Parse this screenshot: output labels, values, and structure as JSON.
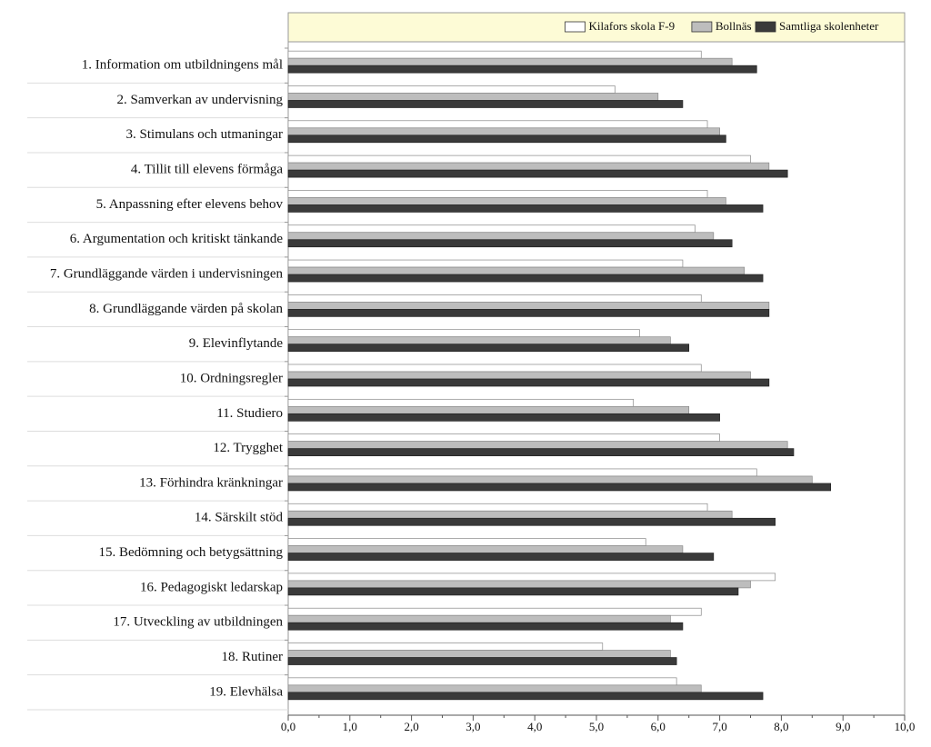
{
  "chart_data": {
    "type": "bar",
    "orientation": "horizontal",
    "categories": [
      "1. Information om utbildningens mål",
      "2. Samverkan av undervisning",
      "3. Stimulans och utmaningar",
      "4. Tillit till elevens förmåga",
      "5. Anpassning efter elevens behov",
      "6. Argumentation och kritiskt tänkande",
      "7. Grundläggande värden i undervisningen",
      "8. Grundläggande värden på skolan",
      "9. Elevinflytande",
      "10. Ordningsregler",
      "11. Studiero",
      "12. Trygghet",
      "13. Förhindra kränkningar",
      "14. Särskilt stöd",
      "15. Bedömning och betygsättning",
      "16. Pedagogiskt ledarskap",
      "17. Utveckling av utbildningen",
      "18. Rutiner",
      "19. Elevhälsa"
    ],
    "series": [
      {
        "name": "Kilafors skola F-9",
        "color": "#ffffff",
        "values": [
          6.7,
          5.3,
          6.8,
          7.5,
          6.8,
          6.6,
          6.4,
          6.7,
          5.7,
          6.7,
          5.6,
          7.0,
          7.6,
          6.8,
          5.8,
          7.9,
          6.7,
          5.1,
          6.3
        ]
      },
      {
        "name": "Bollnäs",
        "color": "#bdbdbd",
        "values": [
          7.2,
          6.0,
          7.0,
          7.8,
          7.1,
          6.9,
          7.4,
          7.8,
          6.2,
          7.5,
          6.5,
          8.1,
          8.5,
          7.2,
          6.4,
          7.5,
          6.2,
          6.2,
          6.7
        ]
      },
      {
        "name": "Samtliga skolenheter",
        "color": "#3a3a3a",
        "values": [
          7.6,
          6.4,
          7.1,
          8.1,
          7.7,
          7.2,
          7.7,
          7.8,
          6.5,
          7.8,
          7.0,
          8.2,
          8.8,
          7.9,
          6.9,
          7.3,
          6.4,
          6.3,
          7.7
        ]
      }
    ],
    "xlim": [
      0,
      10
    ],
    "xticks": [
      {
        "value": 0,
        "label": "0,0"
      },
      {
        "value": 1,
        "label": "1,0"
      },
      {
        "value": 2,
        "label": "2,0"
      },
      {
        "value": 3,
        "label": "3,0"
      },
      {
        "value": 4,
        "label": "4,0"
      },
      {
        "value": 5,
        "label": "5,0"
      },
      {
        "value": 6,
        "label": "6,0"
      },
      {
        "value": 7,
        "label": "7,0"
      },
      {
        "value": 8,
        "label": "8,0"
      },
      {
        "value": 9,
        "label": "9,0"
      },
      {
        "value": 10,
        "label": "10,0"
      }
    ],
    "legend": "top-right"
  }
}
